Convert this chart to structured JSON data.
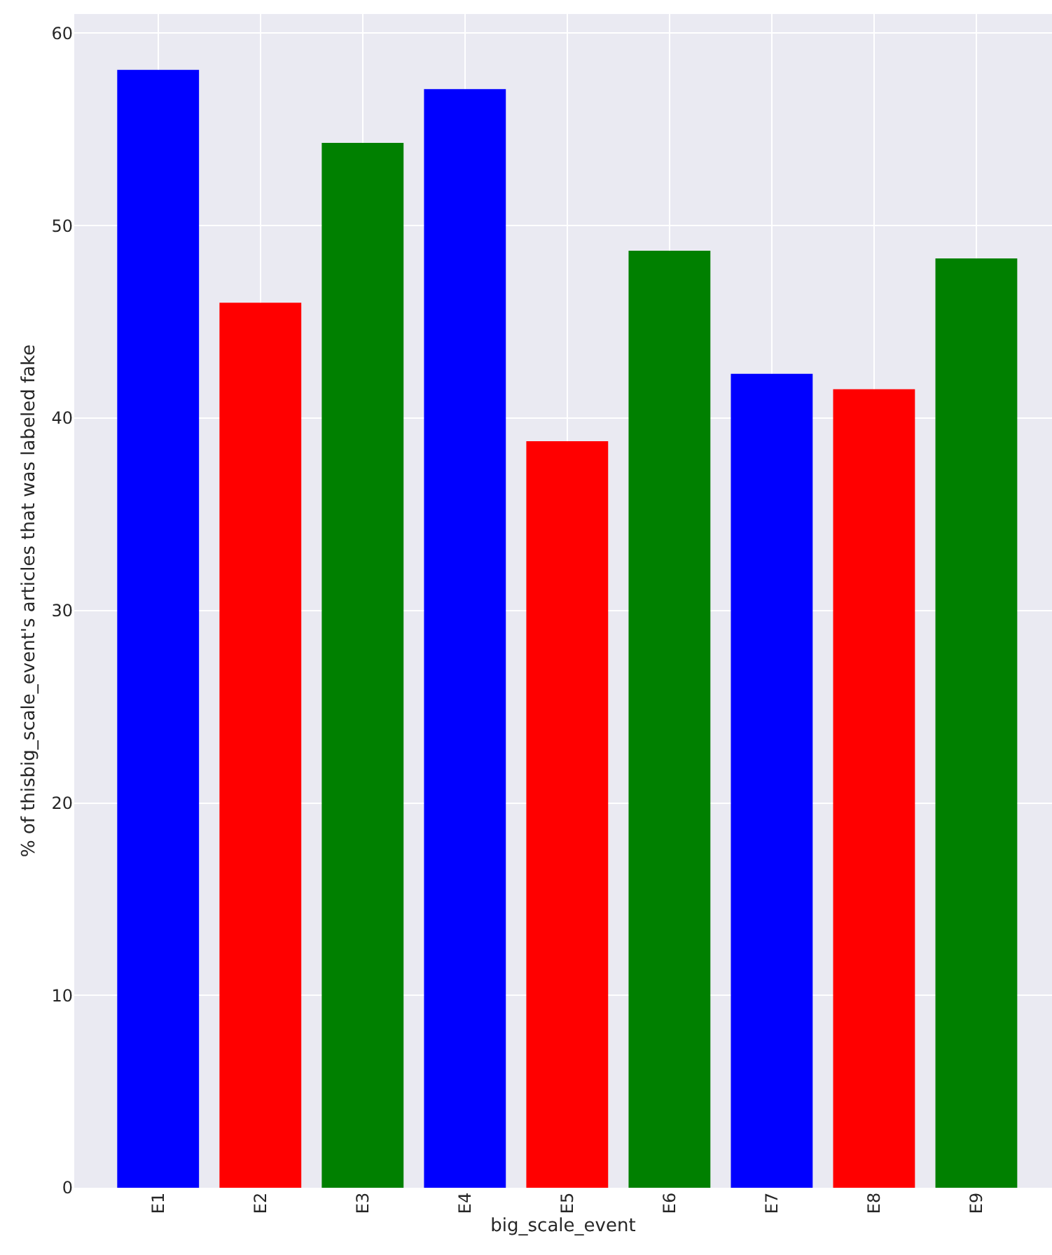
{
  "chart_data": {
    "type": "bar",
    "xlabel": "big_scale_event",
    "ylabel": "% of thisbig_scale_event's articles that was labeled fake",
    "categories": [
      "E1",
      "E2",
      "E3",
      "E4",
      "E5",
      "E6",
      "E7",
      "E8",
      "E9"
    ],
    "values": [
      58.1,
      46.0,
      54.3,
      57.1,
      38.8,
      48.7,
      42.3,
      41.5,
      48.3
    ],
    "colors": [
      "#0000ff",
      "#ff0000",
      "#008000",
      "#0000ff",
      "#ff0000",
      "#008000",
      "#0000ff",
      "#ff0000",
      "#008000"
    ],
    "ylim": [
      0,
      61
    ],
    "yticks": [
      0,
      10,
      20,
      30,
      40,
      50,
      60
    ],
    "grid": true
  }
}
